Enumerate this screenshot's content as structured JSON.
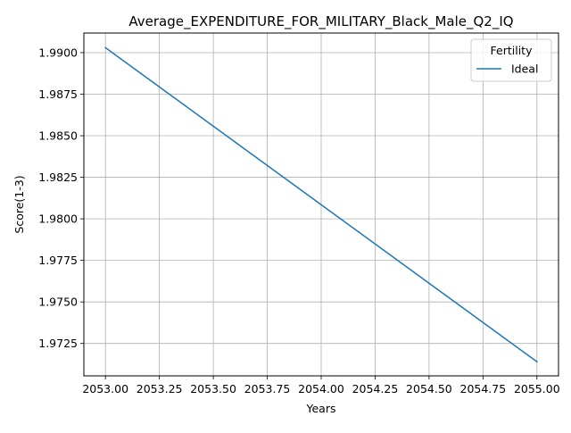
{
  "chart_data": {
    "type": "line",
    "title": "Average_EXPENDITURE_FOR_MILITARY_Black_Male_Q2_IQ",
    "xlabel": "Years",
    "ylabel": "Score(1-3)",
    "xlim": [
      2052.9,
      2055.1
    ],
    "ylim": [
      1.97055,
      1.99118
    ],
    "x_ticks": [
      2053.0,
      2053.25,
      2053.5,
      2053.75,
      2054.0,
      2054.25,
      2054.5,
      2054.75,
      2055.0
    ],
    "x_tick_labels": [
      "2053.00",
      "2053.25",
      "2053.50",
      "2053.75",
      "2054.00",
      "2054.25",
      "2054.50",
      "2054.75",
      "2055.00"
    ],
    "y_ticks": [
      1.9725,
      1.975,
      1.9775,
      1.98,
      1.9825,
      1.985,
      1.9875,
      1.99
    ],
    "y_tick_labels": [
      "1.9725",
      "1.9750",
      "1.9775",
      "1.9800",
      "1.9825",
      "1.9850",
      "1.9875",
      "1.9900"
    ],
    "grid": true,
    "legend": {
      "title": "Fertility",
      "placement": "top-right"
    },
    "series": [
      {
        "name": "Ideal",
        "color": "#1f77b4",
        "x": [
          2053.0,
          2055.0
        ],
        "y": [
          1.9903,
          1.9714
        ]
      }
    ]
  }
}
